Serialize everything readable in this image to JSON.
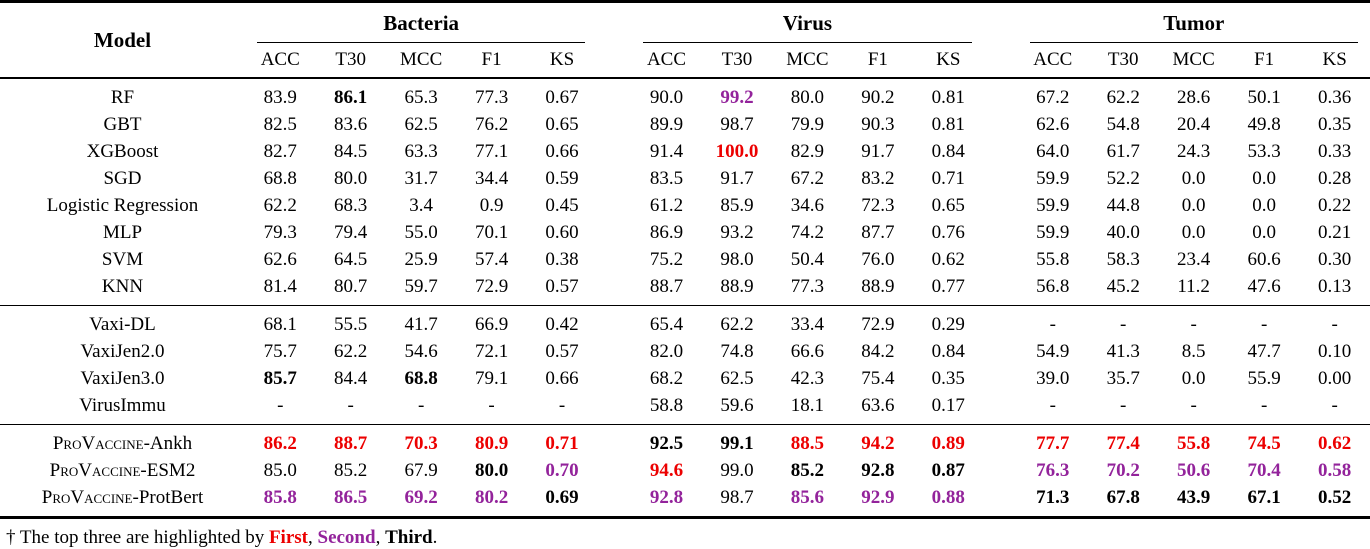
{
  "table": {
    "model_header": "Model",
    "groups": [
      "Bacteria",
      "Virus",
      "Tumor"
    ],
    "metrics": [
      "ACC",
      "T30",
      "MCC",
      "F1",
      "KS"
    ],
    "colors": {
      "first": "#EC0000",
      "second": "#93239B",
      "third": "#000000"
    },
    "sections": [
      {
        "rows": [
          {
            "model": "RF",
            "cells": [
              "83.9",
              {
                "v": "86.1",
                "r": "third"
              },
              "65.3",
              "77.3",
              "0.67",
              "90.0",
              {
                "v": "99.2",
                "r": "second"
              },
              "80.0",
              "90.2",
              "0.81",
              "67.2",
              "62.2",
              "28.6",
              "50.1",
              "0.36"
            ]
          },
          {
            "model": "GBT",
            "cells": [
              "82.5",
              "83.6",
              "62.5",
              "76.2",
              "0.65",
              "89.9",
              "98.7",
              "79.9",
              "90.3",
              "0.81",
              "62.6",
              "54.8",
              "20.4",
              "49.8",
              "0.35"
            ]
          },
          {
            "model": "XGBoost",
            "cells": [
              "82.7",
              "84.5",
              "63.3",
              "77.1",
              "0.66",
              "91.4",
              {
                "v": "100.0",
                "r": "first"
              },
              "82.9",
              "91.7",
              "0.84",
              "64.0",
              "61.7",
              "24.3",
              "53.3",
              "0.33"
            ]
          },
          {
            "model": "SGD",
            "cells": [
              "68.8",
              "80.0",
              "31.7",
              "34.4",
              "0.59",
              "83.5",
              "91.7",
              "67.2",
              "83.2",
              "0.71",
              "59.9",
              "52.2",
              "0.0",
              "0.0",
              "0.28"
            ]
          },
          {
            "model": "Logistic Regression",
            "cells": [
              "62.2",
              "68.3",
              "3.4",
              "0.9",
              "0.45",
              "61.2",
              "85.9",
              "34.6",
              "72.3",
              "0.65",
              "59.9",
              "44.8",
              "0.0",
              "0.0",
              "0.22"
            ]
          },
          {
            "model": "MLP",
            "cells": [
              "79.3",
              "79.4",
              "55.0",
              "70.1",
              "0.60",
              "86.9",
              "93.2",
              "74.2",
              "87.7",
              "0.76",
              "59.9",
              "40.0",
              "0.0",
              "0.0",
              "0.21"
            ]
          },
          {
            "model": "SVM",
            "cells": [
              "62.6",
              "64.5",
              "25.9",
              "57.4",
              "0.38",
              "75.2",
              "98.0",
              "50.4",
              "76.0",
              "0.62",
              "55.8",
              "58.3",
              "23.4",
              "60.6",
              "0.30"
            ]
          },
          {
            "model": "KNN",
            "cells": [
              "81.4",
              "80.7",
              "59.7",
              "72.9",
              "0.57",
              "88.7",
              "88.9",
              "77.3",
              "88.9",
              "0.77",
              "56.8",
              "45.2",
              "11.2",
              "47.6",
              "0.13"
            ]
          }
        ]
      },
      {
        "rows": [
          {
            "model": "Vaxi-DL",
            "cells": [
              "68.1",
              "55.5",
              "41.7",
              "66.9",
              "0.42",
              "65.4",
              "62.2",
              "33.4",
              "72.9",
              "0.29",
              "-",
              "-",
              "-",
              "-",
              "-"
            ]
          },
          {
            "model": "VaxiJen2.0",
            "cells": [
              "75.7",
              "62.2",
              "54.6",
              "72.1",
              "0.57",
              "82.0",
              "74.8",
              "66.6",
              "84.2",
              "0.84",
              "54.9",
              "41.3",
              "8.5",
              "47.7",
              "0.10"
            ]
          },
          {
            "model": "VaxiJen3.0",
            "cells": [
              {
                "v": "85.7",
                "r": "third"
              },
              "84.4",
              {
                "v": "68.8",
                "r": "third"
              },
              "79.1",
              "0.66",
              "68.2",
              "62.5",
              "42.3",
              "75.4",
              "0.35",
              "39.0",
              "35.7",
              "0.0",
              "55.9",
              "0.00"
            ]
          },
          {
            "model": "VirusImmu",
            "cells": [
              "-",
              "-",
              "-",
              "-",
              "-",
              "58.8",
              "59.6",
              "18.1",
              "63.6",
              "0.17",
              "-",
              "-",
              "-",
              "-",
              "-"
            ]
          }
        ]
      },
      {
        "rows": [
          {
            "model": {
              "smallcaps": "ProVaccine",
              "suffix": "-Ankh"
            },
            "cells": [
              {
                "v": "86.2",
                "r": "first"
              },
              {
                "v": "88.7",
                "r": "first"
              },
              {
                "v": "70.3",
                "r": "first"
              },
              {
                "v": "80.9",
                "r": "first"
              },
              {
                "v": "0.71",
                "r": "first"
              },
              {
                "v": "92.5",
                "r": "third"
              },
              {
                "v": "99.1",
                "r": "third"
              },
              {
                "v": "88.5",
                "r": "first"
              },
              {
                "v": "94.2",
                "r": "first"
              },
              {
                "v": "0.89",
                "r": "first"
              },
              {
                "v": "77.7",
                "r": "first"
              },
              {
                "v": "77.4",
                "r": "first"
              },
              {
                "v": "55.8",
                "r": "first"
              },
              {
                "v": "74.5",
                "r": "first"
              },
              {
                "v": "0.62",
                "r": "first"
              }
            ]
          },
          {
            "model": {
              "smallcaps": "ProVaccine",
              "suffix": "-ESM2"
            },
            "cells": [
              "85.0",
              "85.2",
              "67.9",
              {
                "v": "80.0",
                "r": "third"
              },
              {
                "v": "0.70",
                "r": "second"
              },
              {
                "v": "94.6",
                "r": "first"
              },
              "99.0",
              {
                "v": "85.2",
                "r": "third"
              },
              {
                "v": "92.8",
                "r": "third"
              },
              {
                "v": "0.87",
                "r": "third"
              },
              {
                "v": "76.3",
                "r": "second"
              },
              {
                "v": "70.2",
                "r": "second"
              },
              {
                "v": "50.6",
                "r": "second"
              },
              {
                "v": "70.4",
                "r": "second"
              },
              {
                "v": "0.58",
                "r": "second"
              }
            ]
          },
          {
            "model": {
              "smallcaps": "ProVaccine",
              "suffix": "-ProtBert"
            },
            "cells": [
              {
                "v": "85.8",
                "r": "second"
              },
              {
                "v": "86.5",
                "r": "second"
              },
              {
                "v": "69.2",
                "r": "second"
              },
              {
                "v": "80.2",
                "r": "second"
              },
              {
                "v": "0.69",
                "r": "third"
              },
              {
                "v": "92.8",
                "r": "second"
              },
              "98.7",
              {
                "v": "85.6",
                "r": "second"
              },
              {
                "v": "92.9",
                "r": "second"
              },
              {
                "v": "0.88",
                "r": "second"
              },
              {
                "v": "71.3",
                "r": "third"
              },
              {
                "v": "67.8",
                "r": "third"
              },
              {
                "v": "43.9",
                "r": "third"
              },
              {
                "v": "67.1",
                "r": "third"
              },
              {
                "v": "0.52",
                "r": "third"
              }
            ]
          }
        ]
      }
    ],
    "footnote": {
      "prefix": "† The top three are highlighted by ",
      "first": "First",
      "sep1": ", ",
      "second": "Second",
      "sep2": ", ",
      "third": "Third",
      "period": "."
    }
  }
}
